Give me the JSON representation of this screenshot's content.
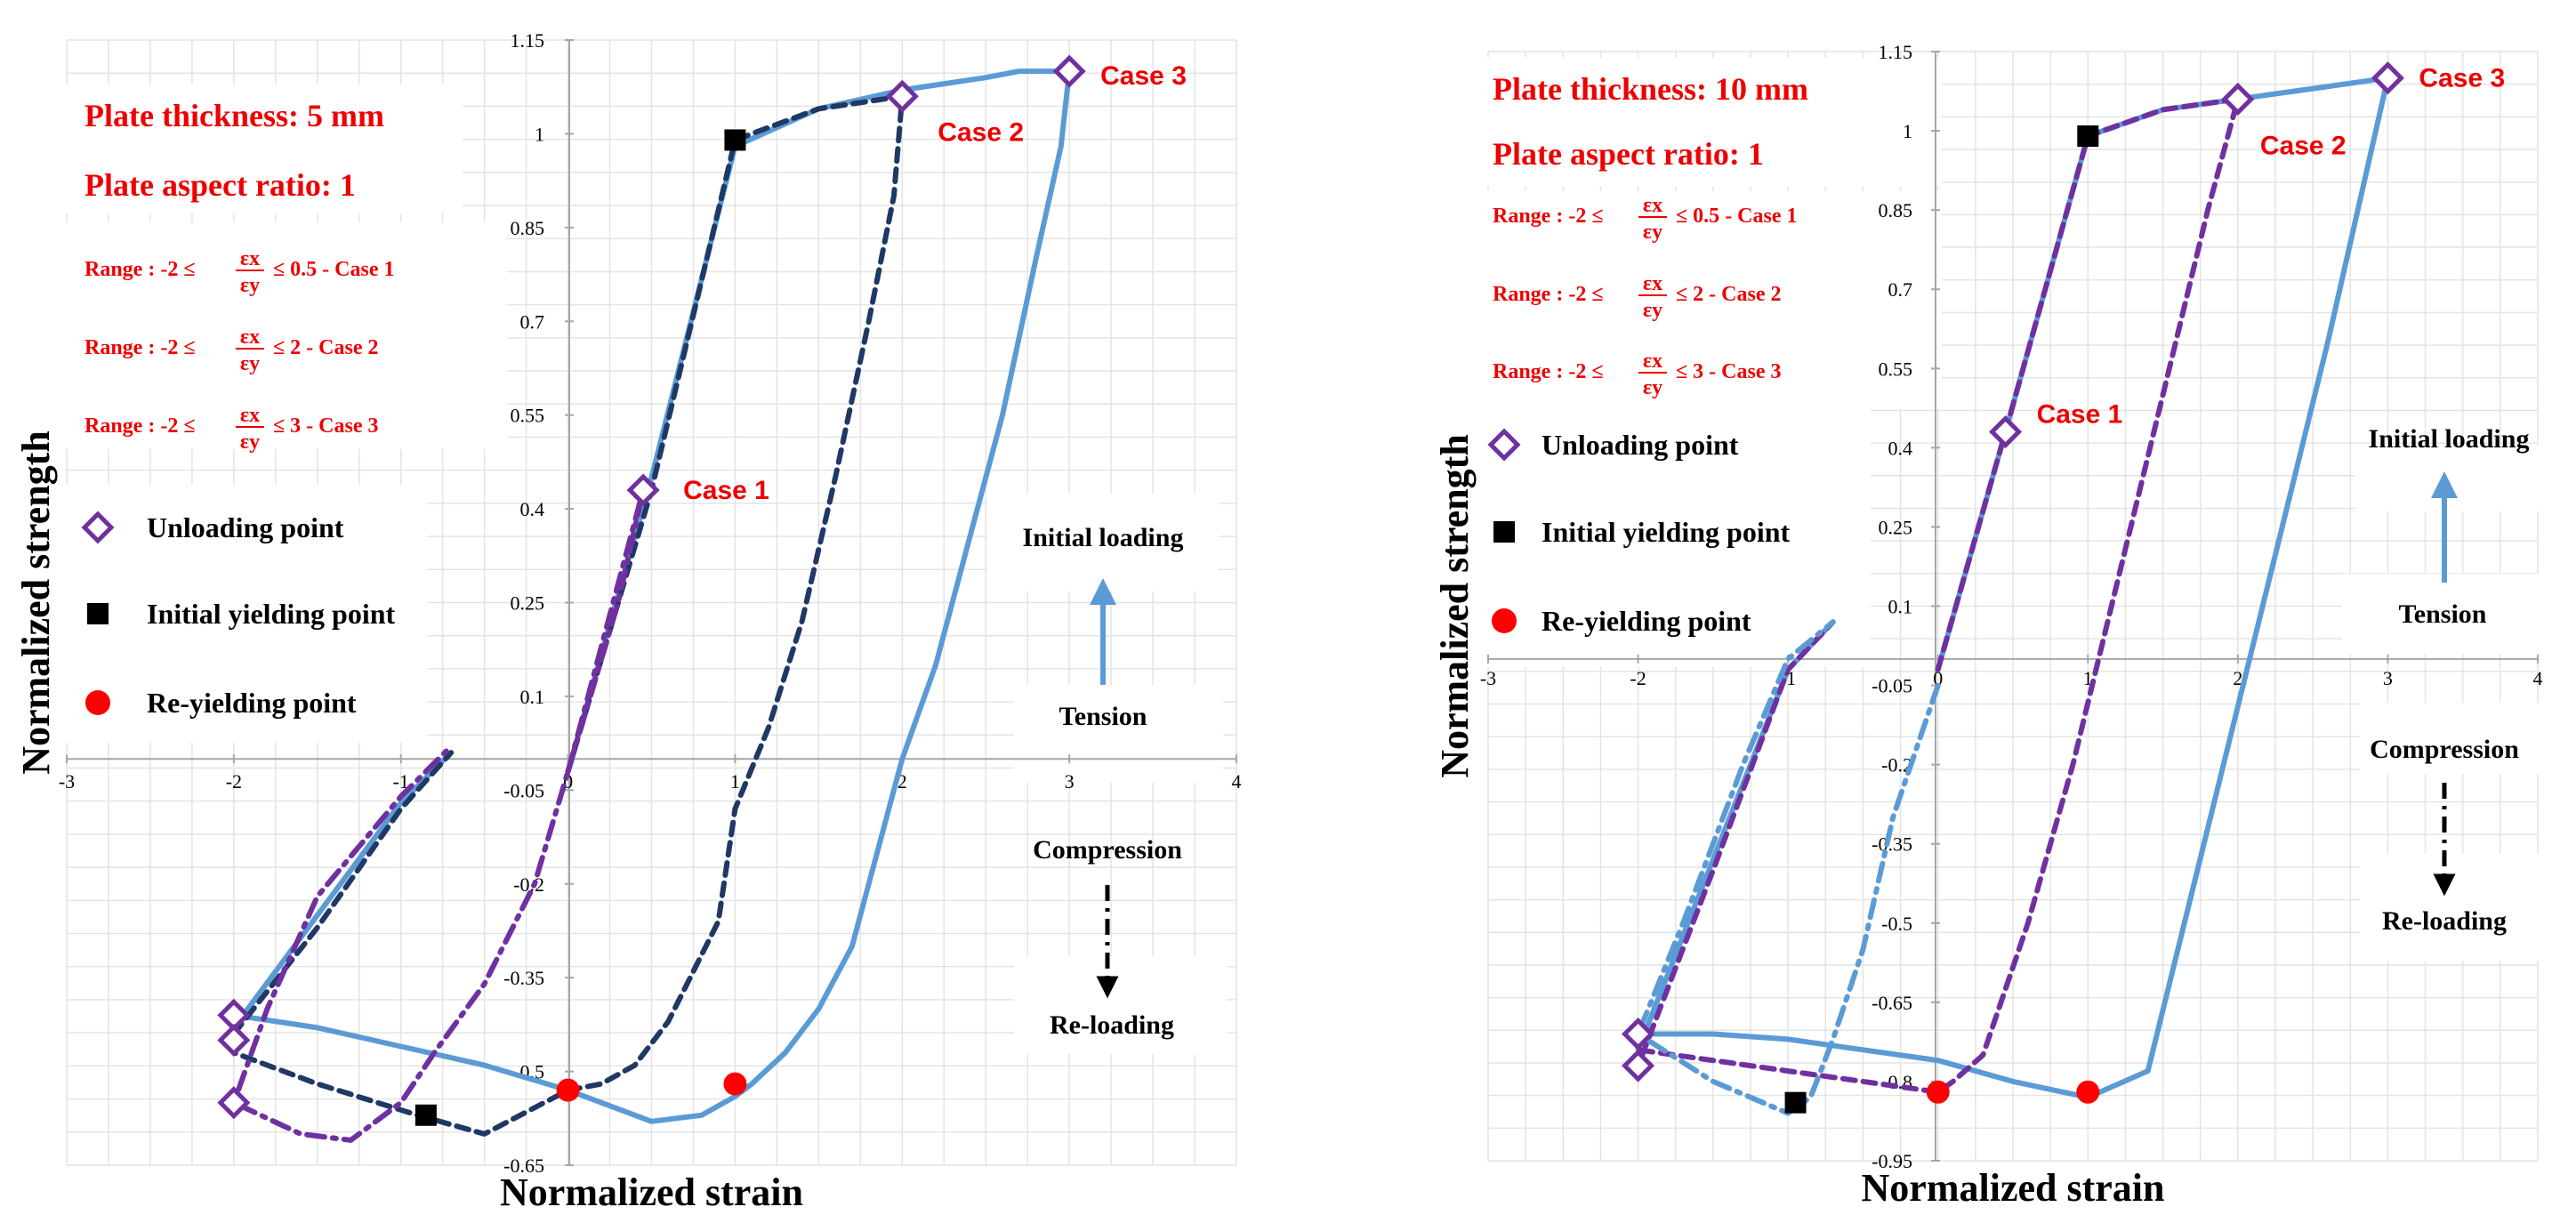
{
  "chart_data": [
    {
      "type": "line",
      "title": "",
      "xlabel": "Normalized  strain",
      "ylabel": "Normalized  strength",
      "xlim": [
        -3,
        4
      ],
      "ylim": [
        -0.65,
        1.15
      ],
      "xticks": [
        "-3",
        "-2",
        "-1",
        "0",
        "1",
        "2",
        "3",
        "4"
      ],
      "yticks": [
        "1.15",
        "1",
        "0.85",
        "0.7",
        "0.55",
        "0.4",
        "0.25",
        "0.1",
        "-0.05",
        "-0.2",
        "-0.35",
        "-0.5",
        "-0.65"
      ],
      "grid": true,
      "info": {
        "thickness": "Plate thickness: 5 mm",
        "aspect": "Plate aspect ratio: 1",
        "ranges": [
          {
            "prefix": "Range : -2 ≤",
            "suffix": "≤ 0.5  -  Case 1"
          },
          {
            "prefix": "Range : -2 ≤",
            "suffix": "≤ 2  -  Case 2"
          },
          {
            "prefix": "Range : -2 ≤",
            "suffix": "≤ 3  -  Case 3"
          }
        ]
      },
      "legend": {
        "unloading": "Unloading point",
        "yielding": "Initial yielding point",
        "reyielding": "Re-yielding point"
      },
      "cases": [
        {
          "label": "Case 1",
          "x": 0.45,
          "y": 0.43
        },
        {
          "label": "Case 2",
          "x": 2.0,
          "y": 1.06
        },
        {
          "label": "Case 3",
          "x": 3.0,
          "y": 1.1
        }
      ],
      "annotations": {
        "initial_loading": "Initial loading",
        "tension": "Tension",
        "compression": "Compression",
        "reloading": "Re-loading"
      },
      "series": [
        {
          "style": "solid",
          "color": "#5b9bd5",
          "x": [
            0,
            0.5,
            1.0,
            1.5,
            2.0,
            2.5,
            2.7,
            2.85,
            3.0,
            2.95,
            2.8,
            2.6,
            2.4,
            2.2,
            2.0,
            1.85,
            1.7,
            1.5,
            1.3,
            1.1,
            1.0,
            0.8,
            0.5,
            0.0,
            -0.5,
            -1.0,
            -1.5,
            -2.0,
            -2.0,
            -1.5,
            -1.0,
            -0.7
          ],
          "y": [
            -0.02,
            0.45,
            0.98,
            1.04,
            1.07,
            1.09,
            1.1,
            1.1,
            1.1,
            0.98,
            0.8,
            0.55,
            0.35,
            0.15,
            0.0,
            -0.15,
            -0.3,
            -0.4,
            -0.47,
            -0.52,
            -0.54,
            -0.57,
            -0.58,
            -0.53,
            -0.49,
            -0.46,
            -0.43,
            -0.41,
            -0.43,
            -0.25,
            -0.07,
            0.01
          ]
        },
        {
          "style": "dashed",
          "color": "#1f3864",
          "x": [
            0,
            0.5,
            1.0,
            1.5,
            2.0,
            1.95,
            1.8,
            1.6,
            1.4,
            1.2,
            1.0,
            0.9,
            0.6,
            0.4,
            0.2,
            0.0,
            -0.5,
            -0.9,
            -1.5,
            -2.0,
            -2.0,
            -1.5,
            -1.0,
            -0.7
          ],
          "y": [
            -0.02,
            0.43,
            0.99,
            1.04,
            1.06,
            0.9,
            0.7,
            0.45,
            0.22,
            0.05,
            -0.08,
            -0.26,
            -0.42,
            -0.49,
            -0.52,
            -0.53,
            -0.6,
            -0.57,
            -0.52,
            -0.47,
            -0.44,
            -0.27,
            -0.08,
            0.01
          ]
        },
        {
          "style": "dashdot",
          "color": "#7030a0",
          "x": [
            0,
            0.45,
            0.3,
            0.0,
            -0.2,
            -0.5,
            -0.8,
            -1.0,
            -1.3,
            -1.6,
            -2.0,
            -1.8,
            -1.5,
            -1.0,
            -0.7
          ],
          "y": [
            -0.02,
            0.43,
            0.25,
            -0.02,
            -0.2,
            -0.36,
            -0.47,
            -0.55,
            -0.61,
            -0.6,
            -0.55,
            -0.4,
            -0.22,
            -0.06,
            0.02
          ]
        }
      ],
      "markers": {
        "unloading": [
          [
            0.45,
            0.43
          ],
          [
            2.0,
            1.06
          ],
          [
            3.0,
            1.1
          ],
          [
            -2.0,
            -0.41
          ],
          [
            -2.0,
            -0.45
          ],
          [
            -2.0,
            -0.55
          ]
        ],
        "yielding": [
          [
            1.0,
            0.99
          ],
          [
            -0.85,
            -0.57
          ]
        ],
        "reyielding": [
          [
            0.0,
            -0.53
          ],
          [
            1.0,
            -0.52
          ]
        ]
      }
    },
    {
      "type": "line",
      "title": "",
      "xlabel": "Normalized  strain",
      "ylabel": "Normalized  strength",
      "xlim": [
        -3,
        4
      ],
      "ylim": [
        -0.95,
        1.15
      ],
      "xticks": [
        "-3",
        "-2",
        "-1",
        "0",
        "1",
        "2",
        "3",
        "4"
      ],
      "yticks": [
        "1.15",
        "1",
        "0.85",
        "0.7",
        "0.55",
        "0.4",
        "0.25",
        "0.1",
        "-0.05",
        "-0.2",
        "-0.35",
        "-0.5",
        "-0.65",
        "-0.8",
        "-0.95"
      ],
      "grid": true,
      "info": {
        "thickness": "Plate thickness: 10 mm",
        "aspect": "Plate aspect ratio: 1",
        "ranges": [
          {
            "prefix": "Range : -2 ≤",
            "suffix": "≤ 0.5  -  Case 1"
          },
          {
            "prefix": "Range : -2 ≤",
            "suffix": "≤ 2  -  Case 2"
          },
          {
            "prefix": "Range : -2 ≤",
            "suffix": "≤ 3  -  Case 3"
          }
        ]
      },
      "legend": {
        "unloading": "Unloading point",
        "yielding": "Initial yielding point",
        "reyielding": "Re-yielding point"
      },
      "cases": [
        {
          "label": "Case 1",
          "x": 0.45,
          "y": 0.43
        },
        {
          "label": "Case 2",
          "x": 2.0,
          "y": 1.06
        },
        {
          "label": "Case 3",
          "x": 3.0,
          "y": 1.1
        }
      ],
      "annotations": {
        "initial_loading": "Initial loading",
        "tension": "Tension",
        "compression": "Compression",
        "reloading": "Re-loading"
      },
      "series": [
        {
          "style": "solid",
          "color": "#5b9bd5",
          "x": [
            0,
            0.45,
            1.0,
            1.5,
            2.0,
            2.5,
            3.0,
            2.6,
            2.2,
            1.8,
            1.4,
            1.0,
            0.5,
            0.0,
            -0.5,
            -1.0,
            -1.5,
            -2.0,
            -2.0,
            -1.5,
            -1.0,
            -0.7
          ],
          "y": [
            -0.02,
            0.43,
            0.99,
            1.04,
            1.06,
            1.08,
            1.1,
            0.6,
            0.14,
            -0.32,
            -0.78,
            -0.83,
            -0.8,
            -0.76,
            -0.74,
            -0.72,
            -0.71,
            -0.71,
            -0.74,
            -0.38,
            -0.02,
            0.07
          ]
        },
        {
          "style": "dashed",
          "color": "#7030a0",
          "x": [
            0,
            0.45,
            1.0,
            1.5,
            2.0,
            1.8,
            1.5,
            1.2,
            0.9,
            0.6,
            0.3,
            0.1,
            0.0,
            -0.5,
            -1.0,
            -1.5,
            -2.0,
            -2.0,
            -1.5,
            -1.0,
            -0.7
          ],
          "y": [
            -0.02,
            0.43,
            0.99,
            1.04,
            1.06,
            0.85,
            0.5,
            0.15,
            -0.2,
            -0.5,
            -0.75,
            -0.8,
            -0.82,
            -0.8,
            -0.78,
            -0.76,
            -0.74,
            -0.77,
            -0.4,
            -0.02,
            0.07
          ]
        },
        {
          "style": "dashdot",
          "color": "#5b9bd5",
          "x": [
            0.0,
            -0.3,
            -0.5,
            -0.7,
            -0.85,
            -1.0,
            -1.5,
            -2.0,
            -1.7,
            -1.3,
            -1.0,
            -0.7
          ],
          "y": [
            -0.05,
            -0.3,
            -0.55,
            -0.72,
            -0.83,
            -0.86,
            -0.8,
            -0.71,
            -0.5,
            -0.2,
            0.0,
            0.07
          ]
        }
      ],
      "markers": {
        "unloading": [
          [
            0.45,
            0.43
          ],
          [
            2.0,
            1.06
          ],
          [
            3.0,
            1.1
          ],
          [
            -2.0,
            -0.71
          ],
          [
            -2.0,
            -0.77
          ]
        ],
        "yielding": [
          [
            1.0,
            0.99
          ],
          [
            -0.95,
            -0.84
          ]
        ],
        "reyielding": [
          [
            0.0,
            -0.82
          ],
          [
            1.0,
            -0.82
          ]
        ]
      }
    }
  ]
}
